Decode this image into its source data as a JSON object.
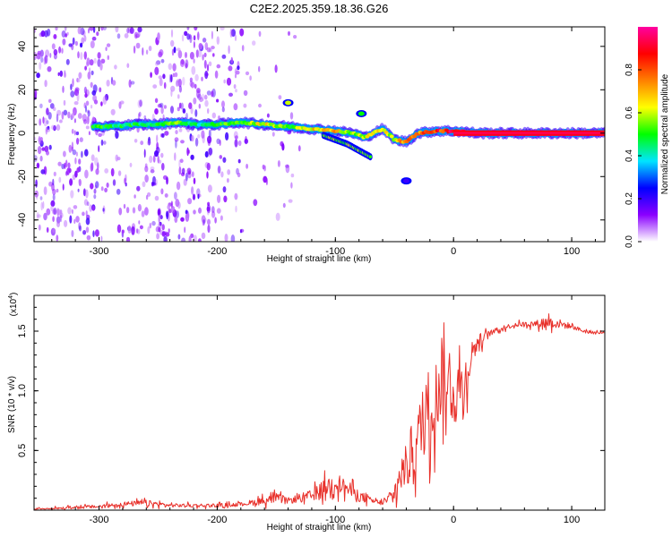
{
  "title": "C2E2.2025.359.18.36.G26",
  "chart_data": [
    {
      "type": "heatmap",
      "title": "C2E2.2025.359.18.36.G26",
      "xlabel": "Height of straight line (km)",
      "ylabel": "Frequency (Hz)",
      "xlim": [
        -355,
        128
      ],
      "ylim": [
        -50,
        49
      ],
      "xticks": [
        -300,
        -200,
        -100,
        0,
        100
      ],
      "xtick_labels": [
        "-300",
        "-200",
        "-100",
        "0",
        "100"
      ],
      "yticks": [
        -40,
        -20,
        0,
        20,
        40
      ],
      "ytick_labels": [
        "-40",
        "-20",
        "0",
        "20",
        "40"
      ],
      "colorbar": {
        "label": "Normalized spectral amplitude",
        "range": [
          0,
          1
        ],
        "ticks": [
          0.0,
          0.2,
          0.4,
          0.6,
          0.8
        ],
        "tick_labels": [
          "0.0",
          "0.2",
          "0.4",
          "0.6",
          "0.8"
        ],
        "colors": [
          "#ffffff",
          "#8a00ff",
          "#0000ff",
          "#00e5ff",
          "#00ff00",
          "#ffff00",
          "#ff8000",
          "#ff0000",
          "#ff00a0"
        ]
      },
      "ridge": {
        "x": [
          -305,
          -290,
          -270,
          -250,
          -235,
          -215,
          -200,
          -180,
          -160,
          -140,
          -120,
          -100,
          -85,
          -75,
          -60,
          -50,
          -40,
          -30,
          -15,
          0,
          20,
          60,
          100,
          128
        ],
        "freq": [
          3,
          3,
          4,
          4,
          5,
          4,
          4,
          5,
          4,
          3,
          2,
          1,
          0,
          -2,
          2,
          -3,
          -4,
          0,
          1,
          1,
          0,
          0,
          0,
          0
        ],
        "amplitude": [
          0.55,
          0.5,
          0.5,
          0.5,
          0.6,
          0.45,
          0.55,
          0.55,
          0.7,
          0.55,
          0.7,
          0.75,
          0.6,
          0.65,
          0.7,
          0.65,
          0.85,
          0.8,
          0.9,
          0.95,
          0.95,
          0.95,
          0.95,
          0.95
        ]
      },
      "branch": {
        "x": [
          -110,
          -100,
          -90,
          -80,
          -70
        ],
        "freq": [
          -1,
          -3,
          -5,
          -8,
          -11
        ]
      },
      "blobs": [
        {
          "x": -140,
          "freq": 14,
          "amplitude": 0.6
        },
        {
          "x": -78,
          "freq": 9,
          "amplitude": 0.5
        },
        {
          "x": -40,
          "freq": -22,
          "amplitude": 0.2
        }
      ],
      "noise_regions": [
        {
          "x_from": -355,
          "x_to": -300,
          "density": "high"
        },
        {
          "x_from": -300,
          "x_to": -255,
          "density": "medium"
        },
        {
          "x_from": -255,
          "x_to": -205,
          "density": "high"
        },
        {
          "x_from": -205,
          "x_to": -175,
          "density": "medium"
        },
        {
          "x_from": -175,
          "x_to": -130,
          "density": "low"
        }
      ]
    },
    {
      "type": "line",
      "title": "",
      "xlabel": "Height of straight line (km)",
      "ylabel": "SNR (10 * v/v)",
      "y_multiplier_label": "(x10",
      "y_multiplier_exp": "4",
      "y_multiplier_close": ")",
      "xlim": [
        -355,
        128
      ],
      "ylim": [
        0,
        1.8
      ],
      "xticks": [
        -300,
        -200,
        -100,
        0,
        100
      ],
      "xtick_labels": [
        "-300",
        "-200",
        "-100",
        "0",
        "100"
      ],
      "yticks": [
        0.5,
        1.0,
        1.5
      ],
      "ytick_labels": [
        "0.5",
        "1.0",
        "1.5"
      ],
      "color": "#e8302a",
      "series": [
        {
          "name": "SNR",
          "x": [
            -355,
            -330,
            -300,
            -280,
            -260,
            -240,
            -220,
            -200,
            -180,
            -160,
            -150,
            -140,
            -120,
            -110,
            -100,
            -90,
            -80,
            -70,
            -60,
            -50,
            -45,
            -40,
            -35,
            -30,
            -25,
            -20,
            -15,
            -10,
            -5,
            0,
            5,
            10,
            15,
            20,
            30,
            40,
            50,
            60,
            70,
            80,
            90,
            100,
            110,
            128
          ],
          "y": [
            0.01,
            0.02,
            0.03,
            0.05,
            0.06,
            0.04,
            0.04,
            0.04,
            0.05,
            0.08,
            0.1,
            0.08,
            0.12,
            0.18,
            0.24,
            0.18,
            0.12,
            0.08,
            0.06,
            0.12,
            0.3,
            0.35,
            0.5,
            0.6,
            0.75,
            0.9,
            0.95,
            1.05,
            1.05,
            1.0,
            1.0,
            1.1,
            1.3,
            1.4,
            1.48,
            1.52,
            1.55,
            1.56,
            1.56,
            1.58,
            1.56,
            1.54,
            1.5,
            1.48
          ],
          "spread": [
            0.01,
            0.02,
            0.03,
            0.04,
            0.05,
            0.03,
            0.03,
            0.03,
            0.03,
            0.07,
            0.08,
            0.05,
            0.1,
            0.15,
            0.16,
            0.14,
            0.1,
            0.05,
            0.04,
            0.15,
            0.3,
            0.4,
            0.5,
            0.55,
            0.6,
            0.7,
            0.65,
            0.55,
            0.5,
            0.6,
            0.55,
            0.4,
            0.25,
            0.15,
            0.05,
            0.04,
            0.04,
            0.04,
            0.06,
            0.1,
            0.08,
            0.04,
            0.03,
            0.03
          ]
        }
      ]
    }
  ]
}
